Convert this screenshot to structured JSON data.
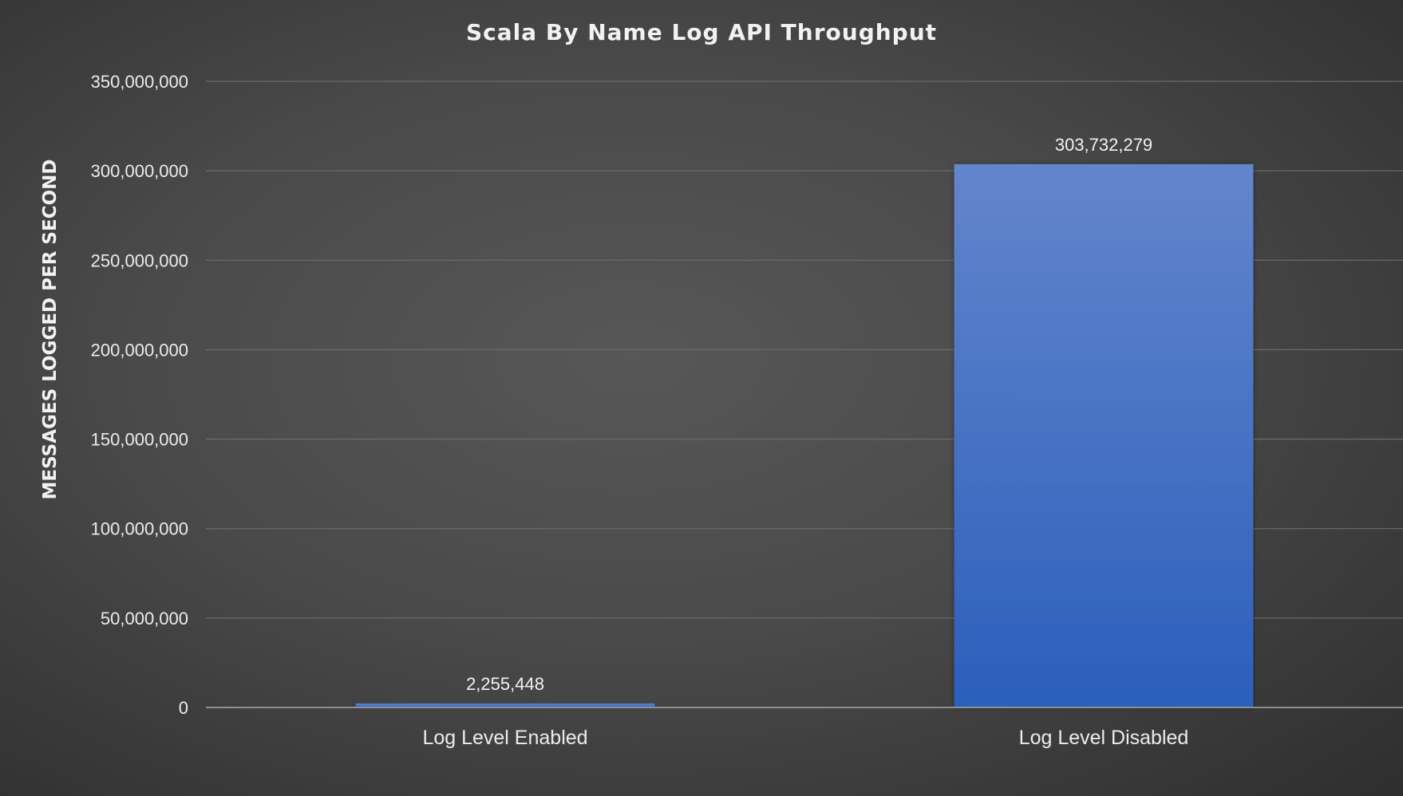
{
  "chart_data": {
    "type": "bar",
    "title": "Scala By Name Log API Throughput",
    "xlabel": "",
    "ylabel": "MESSAGES LOGGED PER SECOND",
    "categories": [
      "Log Level Enabled",
      "Log Level Disabled"
    ],
    "values": [
      2255448,
      303732279
    ],
    "data_labels": [
      "2,255,448",
      "303,732,279"
    ],
    "ylim": [
      0,
      350000000
    ],
    "ytick_values": [
      0,
      50000000,
      100000000,
      150000000,
      200000000,
      250000000,
      300000000,
      350000000
    ],
    "ytick_labels": [
      "0",
      "50,000,000",
      "100,000,000",
      "150,000,000",
      "200,000,000",
      "250,000,000",
      "300,000,000",
      "350,000,000"
    ],
    "grid": true,
    "legend": "none",
    "colors": {
      "bar_top": "#6385cc",
      "bar_bottom": "#2b5fbb",
      "gridline": "#6a6a6a",
      "axis_line": "#a8a8a8"
    }
  }
}
